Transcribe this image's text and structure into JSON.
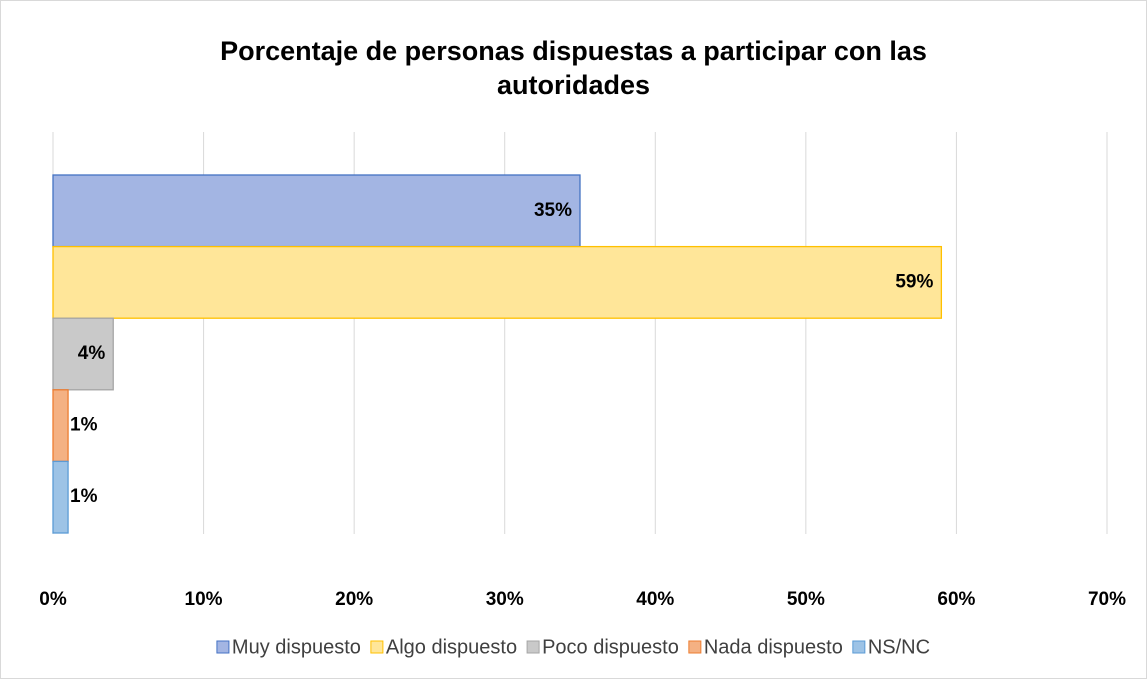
{
  "chart_data": {
    "type": "bar",
    "orientation": "horizontal",
    "title": "Porcentaje de personas dispuestas a participar con las autoridades",
    "series": [
      {
        "name": "Muy dispuesto",
        "color": "#a3b5e3",
        "edgecolor": "#4472c4",
        "values": [
          35
        ],
        "value_labels": [
          "35%"
        ]
      },
      {
        "name": "Algo dispuesto",
        "color": "#ffe699",
        "edgecolor": "#ffc000",
        "values": [
          59
        ],
        "value_labels": [
          "59%"
        ]
      },
      {
        "name": "Poco dispuesto",
        "color": "#c9c9c9",
        "edgecolor": "#a5a5a5",
        "values": [
          4
        ],
        "value_labels": [
          "4%"
        ]
      },
      {
        "name": "Nada dispuesto",
        "color": "#f4b183",
        "edgecolor": "#ed7d31",
        "values": [
          1
        ],
        "value_labels": [
          "1%"
        ]
      },
      {
        "name": "NS/NC",
        "color": "#9dc3e6",
        "edgecolor": "#5b9bd5",
        "values": [
          1
        ],
        "value_labels": [
          "1%"
        ]
      }
    ],
    "xlim": [
      0,
      70
    ],
    "xticks": [
      {
        "value": 0,
        "label": "0%"
      },
      {
        "value": 10,
        "label": "10%"
      },
      {
        "value": 20,
        "label": "20%"
      },
      {
        "value": 30,
        "label": "30%"
      },
      {
        "value": 40,
        "label": "40%"
      },
      {
        "value": 50,
        "label": "50%"
      },
      {
        "value": 60,
        "label": "60%"
      },
      {
        "value": 70,
        "label": "70%"
      }
    ],
    "grid": true,
    "legend": "bottom"
  }
}
